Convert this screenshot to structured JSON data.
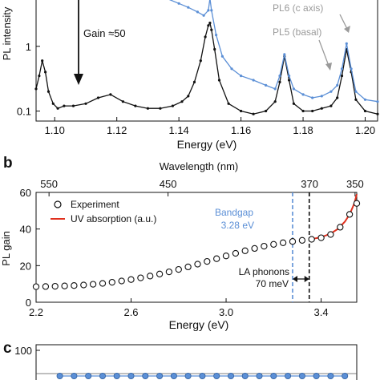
{
  "colors": {
    "black": "#111111",
    "blue": "#5b8fd6",
    "gray": "#9a9a9a",
    "red": "#e0301e"
  },
  "panels": {
    "a": {
      "ylabel": "PL intensity",
      "xlabel": "Energy (eV)",
      "annotations": {
        "gain": "Gain ≈50",
        "pl6": "PL6 (c axis)",
        "pl5": "PL5 (basal)"
      }
    },
    "b": {
      "label": "b",
      "top_axis_label": "Wavelength (nm)",
      "top_ticks": [
        "550",
        "450",
        "370",
        "350"
      ],
      "ylabel": "PL gain",
      "xlabel": "Energy (eV)",
      "legend": [
        "Experiment",
        "UV absorption (a.u.)"
      ],
      "annotations": {
        "bandgap_title": "Bandgap",
        "bandgap_value": "3.28 eV",
        "la_title": "LA phonons",
        "la_value": "70 meV"
      }
    },
    "c": {
      "label": "c",
      "ytick_top": "100"
    }
  },
  "chart_data": [
    {
      "panel": "a",
      "type": "line",
      "xlabel": "Energy (eV)",
      "ylabel": "PL intensity",
      "xlim": [
        1.094,
        1.204
      ],
      "ylim": [
        0.07,
        5.5
      ],
      "yscale": "log",
      "xticks": [
        "1.10",
        "1.12",
        "1.14",
        "1.16",
        "1.18",
        "1.20"
      ],
      "yticks": [
        "0.1",
        "1"
      ],
      "series": [
        {
          "color": "black",
          "x": [
            1.094,
            1.095,
            1.096,
            1.097,
            1.098,
            1.0995,
            1.101,
            1.103,
            1.106,
            1.11,
            1.114,
            1.118,
            1.122,
            1.126,
            1.13,
            1.134,
            1.138,
            1.141,
            1.143,
            1.145,
            1.147,
            1.1485,
            1.1495,
            1.15,
            1.1505,
            1.1515,
            1.153,
            1.156,
            1.16,
            1.164,
            1.168,
            1.171,
            1.1725,
            1.174,
            1.1755,
            1.177,
            1.18,
            1.183,
            1.186,
            1.189,
            1.191,
            1.1925,
            1.194,
            1.1955,
            1.197,
            1.2,
            1.204
          ],
          "y": [
            0.22,
            0.35,
            0.6,
            0.4,
            0.2,
            0.13,
            0.11,
            0.12,
            0.12,
            0.13,
            0.16,
            0.18,
            0.14,
            0.12,
            0.11,
            0.11,
            0.12,
            0.14,
            0.17,
            0.28,
            0.6,
            1.4,
            2.1,
            2.3,
            1.8,
            0.9,
            0.3,
            0.13,
            0.1,
            0.09,
            0.1,
            0.14,
            0.28,
            0.7,
            0.3,
            0.13,
            0.1,
            0.1,
            0.11,
            0.12,
            0.16,
            0.35,
            0.9,
            0.4,
            0.15,
            0.1,
            0.09
          ]
        },
        {
          "color": "blue",
          "x": [
            1.136,
            1.14,
            1.143,
            1.146,
            1.148,
            1.1495,
            1.15,
            1.1505,
            1.152,
            1.154,
            1.157,
            1.16,
            1.164,
            1.168,
            1.171,
            1.1725,
            1.174,
            1.1755,
            1.177,
            1.18,
            1.183,
            1.186,
            1.189,
            1.191,
            1.1925,
            1.194,
            1.1955,
            1.197,
            1.2,
            1.204
          ],
          "y": [
            5.5,
            4.6,
            4.0,
            3.4,
            3.0,
            3.6,
            5.5,
            3.6,
            1.5,
            0.7,
            0.45,
            0.35,
            0.3,
            0.25,
            0.22,
            0.35,
            0.75,
            0.35,
            0.22,
            0.18,
            0.16,
            0.17,
            0.2,
            0.25,
            0.45,
            1.1,
            0.45,
            0.2,
            0.15,
            0.14
          ]
        }
      ]
    },
    {
      "panel": "b",
      "type": "scatter",
      "xlabel": "Energy (eV)",
      "ylabel": "PL gain",
      "xlim": [
        2.2,
        3.55
      ],
      "ylim": [
        0,
        60
      ],
      "xticks": [
        "2.2",
        "2.6",
        "3.0",
        "3.4"
      ],
      "yticks": [
        "0",
        "20",
        "40",
        "60"
      ],
      "series": [
        {
          "name": "Experiment",
          "x": [
            2.2,
            2.24,
            2.28,
            2.32,
            2.36,
            2.4,
            2.44,
            2.48,
            2.52,
            2.56,
            2.6,
            2.64,
            2.68,
            2.72,
            2.76,
            2.8,
            2.84,
            2.88,
            2.92,
            2.96,
            3.0,
            3.04,
            3.08,
            3.12,
            3.16,
            3.2,
            3.24,
            3.28,
            3.32,
            3.36,
            3.4,
            3.44,
            3.48,
            3.52,
            3.55
          ],
          "y": [
            8.5,
            8.6,
            8.7,
            8.9,
            9.1,
            9.4,
            9.8,
            10.3,
            10.9,
            11.6,
            12.4,
            13.3,
            14.3,
            15.4,
            16.6,
            17.9,
            19.3,
            20.8,
            22.3,
            23.8,
            25.3,
            26.7,
            28.1,
            29.4,
            30.6,
            31.6,
            32.5,
            33.2,
            33.8,
            34.4,
            35.2,
            37.0,
            41.0,
            48.0,
            54.0
          ]
        },
        {
          "name": "UV absorption (a.u.)",
          "x": [
            3.36,
            3.4,
            3.44,
            3.47,
            3.5,
            3.52,
            3.54,
            3.55
          ],
          "y": [
            34.5,
            35.5,
            37.5,
            40.0,
            44.0,
            48.0,
            54.0,
            59.0
          ]
        }
      ],
      "vlines": [
        {
          "name": "bandgap",
          "x": 3.28
        },
        {
          "name": "la-phonon",
          "x": 3.35
        }
      ]
    },
    {
      "panel": "c",
      "type": "line",
      "xlim": [
        2.2,
        3.55
      ],
      "yticks": [
        "100"
      ],
      "series": [
        {
          "color": "blue",
          "x": [
            2.3,
            2.36,
            2.42,
            2.48,
            2.54,
            2.6,
            2.66,
            2.72,
            2.78,
            2.84,
            2.9,
            2.96,
            3.02,
            3.08,
            3.14,
            3.2,
            3.26,
            3.32,
            3.38,
            3.44,
            3.5
          ],
          "y": [
            0.35,
            0.35,
            0.35,
            0.35,
            0.35,
            0.35,
            0.35,
            0.35,
            0.35,
            0.35,
            0.35,
            0.35,
            0.35,
            0.35,
            0.35,
            0.35,
            0.35,
            0.35,
            0.35,
            0.35,
            0.35
          ]
        }
      ]
    }
  ]
}
